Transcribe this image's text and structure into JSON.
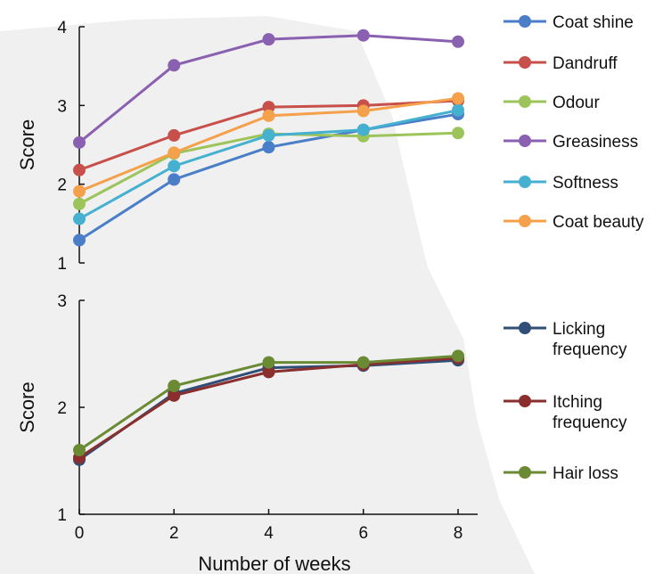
{
  "chart_data": [
    {
      "type": "line",
      "ylabel": "Score",
      "xlabel": "",
      "xlim": [
        0,
        8
      ],
      "ylim": [
        1,
        4
      ],
      "yticks": [
        "1",
        "2",
        "3",
        "4"
      ],
      "x": [
        0,
        2,
        4,
        6,
        8
      ],
      "legend_position": "right",
      "grid": false,
      "series": [
        {
          "name": "Coat shine",
          "color": "#4a7ec8",
          "values": [
            1.29,
            2.06,
            2.47,
            2.69,
            2.89
          ]
        },
        {
          "name": "Dandruff",
          "color": "#c8504b",
          "values": [
            2.18,
            2.62,
            2.98,
            3.0,
            3.06
          ]
        },
        {
          "name": "Odour",
          "color": "#9cc45a",
          "values": [
            1.75,
            2.39,
            2.64,
            2.61,
            2.65
          ]
        },
        {
          "name": "Greasiness",
          "color": "#8a60b0",
          "values": [
            2.53,
            3.51,
            3.84,
            3.89,
            3.81
          ]
        },
        {
          "name": "Softness",
          "color": "#46b0d0",
          "values": [
            1.56,
            2.23,
            2.62,
            2.69,
            2.94
          ]
        },
        {
          "name": "Coat beauty",
          "color": "#f5a04a",
          "values": [
            1.91,
            2.4,
            2.87,
            2.93,
            3.09
          ]
        }
      ]
    },
    {
      "type": "line",
      "ylabel": "Score",
      "xlabel": "Number of weeks",
      "xlim": [
        0,
        8
      ],
      "ylim": [
        1,
        3
      ],
      "yticks": [
        "1",
        "2",
        "3"
      ],
      "xticks": [
        "0",
        "2",
        "4",
        "6",
        "8"
      ],
      "x": [
        0,
        2,
        4,
        6,
        8
      ],
      "legend_position": "right",
      "grid": false,
      "series": [
        {
          "name": "Licking\nfrequency",
          "color": "#2f4f78",
          "values": [
            1.51,
            2.13,
            2.37,
            2.39,
            2.44
          ]
        },
        {
          "name": "Itching\nfrequency",
          "color": "#8a2e2e",
          "values": [
            1.53,
            2.11,
            2.33,
            2.4,
            2.46
          ]
        },
        {
          "name": "Hair loss",
          "color": "#6a8a34",
          "values": [
            1.6,
            2.2,
            2.42,
            2.42,
            2.48
          ]
        }
      ]
    }
  ]
}
